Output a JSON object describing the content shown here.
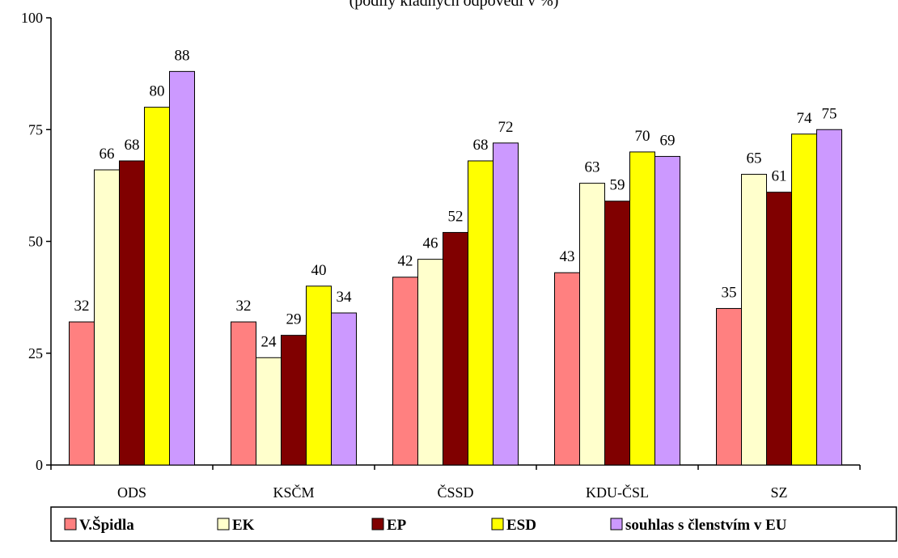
{
  "chart_data": {
    "type": "bar",
    "subtitle": "(podíly kladných odpovědí v %)",
    "categories": [
      "ODS",
      "KSČM",
      "ČSSD",
      "KDU-ČSL",
      "SZ"
    ],
    "ylim": [
      0,
      100
    ],
    "yticks": [
      0,
      25,
      50,
      75,
      100
    ],
    "grid": false,
    "legend_position": "bottom",
    "series": [
      {
        "name": "V.Špidla",
        "color": "#ff8080",
        "values": [
          32,
          32,
          42,
          43,
          35
        ]
      },
      {
        "name": "EK",
        "color": "#ffffcc",
        "values": [
          66,
          24,
          46,
          63,
          65
        ]
      },
      {
        "name": "EP",
        "color": "#800000",
        "values": [
          68,
          29,
          52,
          59,
          61
        ]
      },
      {
        "name": "ESD",
        "color": "#ffff00",
        "values": [
          80,
          40,
          68,
          70,
          74
        ]
      },
      {
        "name": "souhlas s členstvím v EU",
        "color": "#cc99ff",
        "values": [
          88,
          34,
          72,
          69,
          75
        ]
      }
    ]
  }
}
